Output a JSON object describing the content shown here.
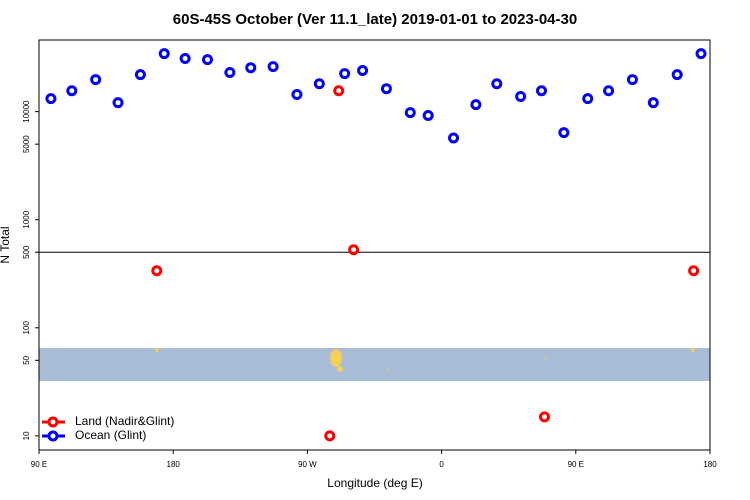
{
  "chart_data": {
    "type": "scatter",
    "title": "60S-45S October (Ver 11.1_late)   2019-01-01 to 2023-04-30",
    "xlabel": "Longitude (deg E)",
    "ylabel": "N Total",
    "xlim": [
      90,
      540
    ],
    "xticks": [
      {
        "value": 90,
        "label": "90 E"
      },
      180,
      {
        "value": 270,
        "label": "90 W"
      },
      {
        "value": 360,
        "label": "0"
      },
      {
        "value": 450,
        "label": "90 E"
      },
      {
        "value": 540,
        "label": "180"
      }
    ],
    "ylim": [
      7.4,
      46000
    ],
    "ylog": true,
    "yticks": [
      10,
      50,
      100,
      500,
      1000,
      5000,
      10000
    ],
    "hline": 500,
    "legend": "bottom-left",
    "series": [
      {
        "name": "Land (Nadir&Glint)",
        "color": "#ff0000",
        "x": [
          169,
          291,
          301,
          285,
          429,
          529
        ],
        "values": [
          337,
          15600,
          527,
          10,
          15,
          337
        ]
      },
      {
        "name": "Ocean (Glint)",
        "color": "#0000ff",
        "x": [
          98,
          112,
          128,
          143,
          158,
          174,
          188,
          203,
          218,
          232,
          247,
          263,
          278,
          295,
          307,
          323,
          339,
          351,
          368,
          383,
          397,
          413,
          427,
          442,
          458,
          472,
          488,
          502,
          518,
          534
        ],
        "values": [
          13200,
          15600,
          19800,
          12100,
          22000,
          34400,
          31000,
          30300,
          23000,
          25500,
          26100,
          14400,
          18100,
          22500,
          24000,
          16300,
          9800,
          9200,
          5700,
          11600,
          18100,
          13800,
          15600,
          6400,
          13200,
          15600,
          19800,
          12100,
          22000,
          34400
        ]
      }
    ]
  }
}
